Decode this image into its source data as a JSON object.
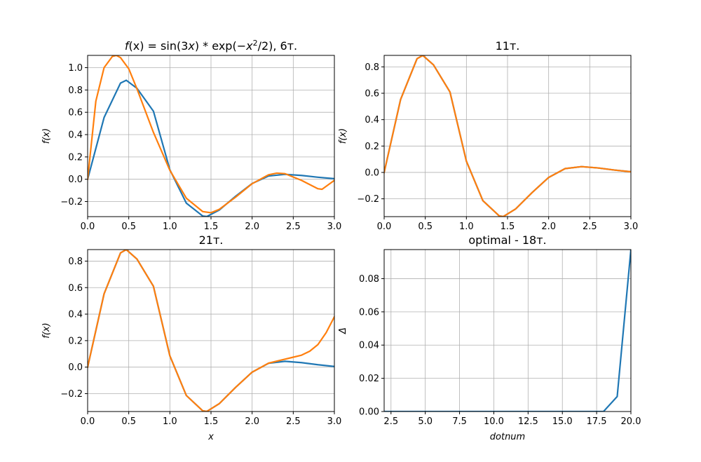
{
  "colors": {
    "series1": "#1f77b4",
    "series2": "#ff7f0e",
    "grid": "#b0b0b0",
    "frame": "#000000"
  },
  "chart_data": [
    {
      "type": "line",
      "title": "f(x) = sin(3x) * exp(−x²/2), 6т.",
      "title_parts": {
        "lhs": "f",
        "arg": "(x)",
        "rhs": " = sin(3",
        "x1": "x",
        "mid": ") * exp(−",
        "x2": "x",
        "sup": "2",
        "tail": "/2), 6т."
      },
      "xlabel": "",
      "ylabel": "f(x)",
      "xlim": [
        0,
        3
      ],
      "ylim": [
        -0.335,
        1.11
      ],
      "xticks": [
        0.0,
        0.5,
        1.0,
        1.5,
        2.0,
        2.5,
        3.0
      ],
      "xtick_labels": [
        "0.0",
        "0.5",
        "1.0",
        "1.5",
        "2.0",
        "2.5",
        "3.0"
      ],
      "yticks": [
        -0.2,
        0.0,
        0.2,
        0.4,
        0.6,
        0.8,
        1.0
      ],
      "ytick_labels": [
        "−0.2",
        "0.0",
        "0.2",
        "0.4",
        "0.6",
        "0.8",
        "1.0"
      ],
      "grid": true,
      "series": [
        {
          "color": "series1",
          "x": [
            0.0,
            0.2,
            0.4,
            0.47,
            0.6,
            0.8,
            1.0,
            1.2,
            1.4,
            1.45,
            1.6,
            1.8,
            2.0,
            2.2,
            2.4,
            2.6,
            2.8,
            3.0
          ],
          "y": [
            0.0,
            0.553,
            0.862,
            0.887,
            0.815,
            0.61,
            0.085,
            -0.214,
            -0.33,
            -0.334,
            -0.276,
            -0.152,
            -0.038,
            0.029,
            0.044,
            0.034,
            0.018,
            0.005
          ]
        },
        {
          "color": "series2",
          "x": [
            0.0,
            0.1,
            0.2,
            0.3,
            0.35,
            0.4,
            0.5,
            0.6,
            0.8,
            1.0,
            1.2,
            1.4,
            1.5,
            1.6,
            1.8,
            2.0,
            2.2,
            2.3,
            2.4,
            2.6,
            2.8,
            2.85,
            3.0
          ],
          "y": [
            0.0,
            0.7,
            1.0,
            1.1,
            1.11,
            1.09,
            0.99,
            0.81,
            0.42,
            0.08,
            -0.17,
            -0.29,
            -0.3,
            -0.27,
            -0.16,
            -0.04,
            0.04,
            0.055,
            0.05,
            -0.01,
            -0.085,
            -0.09,
            -0.01
          ]
        }
      ]
    },
    {
      "type": "line",
      "title": "11т.",
      "xlabel": "",
      "ylabel": "f(x)",
      "xlim": [
        0,
        3
      ],
      "ylim": [
        -0.335,
        0.887
      ],
      "xticks": [
        0.0,
        0.5,
        1.0,
        1.5,
        2.0,
        2.5,
        3.0
      ],
      "xtick_labels": [
        "0.0",
        "0.5",
        "1.0",
        "1.5",
        "2.0",
        "2.5",
        "3.0"
      ],
      "yticks": [
        -0.2,
        0.0,
        0.2,
        0.4,
        0.6,
        0.8
      ],
      "ytick_labels": [
        "−0.2",
        "0.0",
        "0.2",
        "0.4",
        "0.6",
        "0.8"
      ],
      "grid": true,
      "series": [
        {
          "color": "series1",
          "x": [
            0.0,
            0.2,
            0.4,
            0.47,
            0.6,
            0.8,
            1.0,
            1.2,
            1.4,
            1.45,
            1.6,
            1.8,
            2.0,
            2.2,
            2.4,
            2.6,
            2.8,
            3.0
          ],
          "y": [
            0.0,
            0.553,
            0.862,
            0.887,
            0.815,
            0.61,
            0.085,
            -0.214,
            -0.33,
            -0.334,
            -0.276,
            -0.152,
            -0.038,
            0.029,
            0.044,
            0.034,
            0.018,
            0.005
          ]
        },
        {
          "color": "series2",
          "x": [
            0.0,
            0.2,
            0.4,
            0.47,
            0.6,
            0.8,
            1.0,
            1.2,
            1.4,
            1.45,
            1.6,
            1.8,
            2.0,
            2.2,
            2.4,
            2.6,
            2.8,
            3.0
          ],
          "y": [
            0.0,
            0.553,
            0.862,
            0.887,
            0.815,
            0.61,
            0.085,
            -0.214,
            -0.33,
            -0.334,
            -0.276,
            -0.152,
            -0.038,
            0.029,
            0.044,
            0.034,
            0.018,
            0.005
          ]
        }
      ]
    },
    {
      "type": "line",
      "title": "21т.",
      "xlabel": "x",
      "ylabel": "f(x)",
      "xlim": [
        0,
        3
      ],
      "ylim": [
        -0.335,
        0.887
      ],
      "xticks": [
        0.0,
        0.5,
        1.0,
        1.5,
        2.0,
        2.5,
        3.0
      ],
      "xtick_labels": [
        "0.0",
        "0.5",
        "1.0",
        "1.5",
        "2.0",
        "2.5",
        "3.0"
      ],
      "yticks": [
        -0.2,
        0.0,
        0.2,
        0.4,
        0.6,
        0.8
      ],
      "ytick_labels": [
        "−0.2",
        "0.0",
        "0.2",
        "0.4",
        "0.6",
        "0.8"
      ],
      "grid": true,
      "series": [
        {
          "color": "series1",
          "x": [
            0.0,
            0.2,
            0.4,
            0.47,
            0.6,
            0.8,
            1.0,
            1.2,
            1.4,
            1.45,
            1.6,
            1.8,
            2.0,
            2.2,
            2.4,
            2.6,
            2.8,
            3.0
          ],
          "y": [
            0.0,
            0.553,
            0.862,
            0.887,
            0.815,
            0.61,
            0.085,
            -0.214,
            -0.33,
            -0.334,
            -0.276,
            -0.152,
            -0.038,
            0.029,
            0.044,
            0.034,
            0.018,
            0.005
          ]
        },
        {
          "color": "series2",
          "x": [
            0.0,
            0.2,
            0.4,
            0.47,
            0.6,
            0.8,
            1.0,
            1.2,
            1.4,
            1.45,
            1.6,
            1.8,
            2.0,
            2.2,
            2.4,
            2.5,
            2.6,
            2.7,
            2.8,
            2.9,
            3.0
          ],
          "y": [
            0.0,
            0.553,
            0.862,
            0.887,
            0.815,
            0.61,
            0.085,
            -0.214,
            -0.33,
            -0.334,
            -0.276,
            -0.152,
            -0.038,
            0.03,
            0.06,
            0.075,
            0.09,
            0.12,
            0.17,
            0.26,
            0.38
          ]
        }
      ]
    },
    {
      "type": "line",
      "title": "optimal - 18т.",
      "xlabel": "dotnum",
      "ylabel": "Δ",
      "xlim": [
        2,
        20
      ],
      "ylim": [
        0,
        0.0975
      ],
      "xticks": [
        2.5,
        5.0,
        7.5,
        10.0,
        12.5,
        15.0,
        17.5,
        20.0
      ],
      "xtick_labels": [
        "2.5",
        "5.0",
        "7.5",
        "10.0",
        "12.5",
        "15.0",
        "17.5",
        "20.0"
      ],
      "yticks": [
        0.0,
        0.02,
        0.04,
        0.06,
        0.08
      ],
      "ytick_labels": [
        "0.00",
        "0.02",
        "0.04",
        "0.06",
        "0.08"
      ],
      "grid": true,
      "series": [
        {
          "color": "series1",
          "x": [
            2,
            3,
            4,
            5,
            6,
            7,
            8,
            9,
            10,
            11,
            12,
            13,
            14,
            15,
            16,
            17,
            18,
            19,
            20
          ],
          "y": [
            0,
            0,
            0,
            0,
            0,
            0,
            0,
            0,
            0,
            0,
            0,
            0,
            0,
            0,
            0,
            0,
            0,
            0.009,
            0.0975
          ]
        }
      ]
    }
  ]
}
